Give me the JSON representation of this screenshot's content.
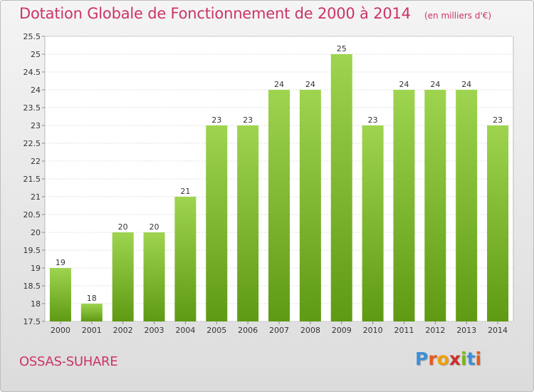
{
  "header": {
    "title": "Dotation Globale de Fonctionnement de 2000 à 2014",
    "subtitle": "(en milliers d'€)"
  },
  "footer": {
    "commune": "OSSAS-SUHARE",
    "logo_letters": [
      "P",
      "r",
      "o",
      "x",
      "i",
      "t",
      "i"
    ],
    "logo_colors": [
      "#3d8fd6",
      "#e85a1f",
      "#f0a000",
      "#cc2e2e",
      "#7ab51d",
      "#3d8fd6",
      "#e85a1f"
    ]
  },
  "chart_data": {
    "type": "bar",
    "categories": [
      "2000",
      "2001",
      "2002",
      "2003",
      "2004",
      "2005",
      "2006",
      "2007",
      "2008",
      "2009",
      "2010",
      "2011",
      "2012",
      "2013",
      "2014"
    ],
    "values": [
      19,
      18,
      20,
      20,
      21,
      23,
      23,
      24,
      24,
      25,
      23,
      24,
      24,
      24,
      23
    ],
    "value_labels": [
      "19",
      "18",
      "20",
      "20",
      "21",
      "23",
      "23",
      "24",
      "24",
      "25",
      "23",
      "24",
      "24",
      "24",
      "23"
    ],
    "yticks": [
      "17.5",
      "18",
      "18.5",
      "19",
      "19.5",
      "20",
      "20.5",
      "21",
      "21.5",
      "22",
      "22.5",
      "23",
      "23.5",
      "24",
      "24.5",
      "25",
      "25.5"
    ],
    "ylim": [
      17.5,
      25.5
    ],
    "grid": true,
    "bar_color_top": "#9ed44f",
    "bar_color_bottom": "#5f9a14"
  }
}
